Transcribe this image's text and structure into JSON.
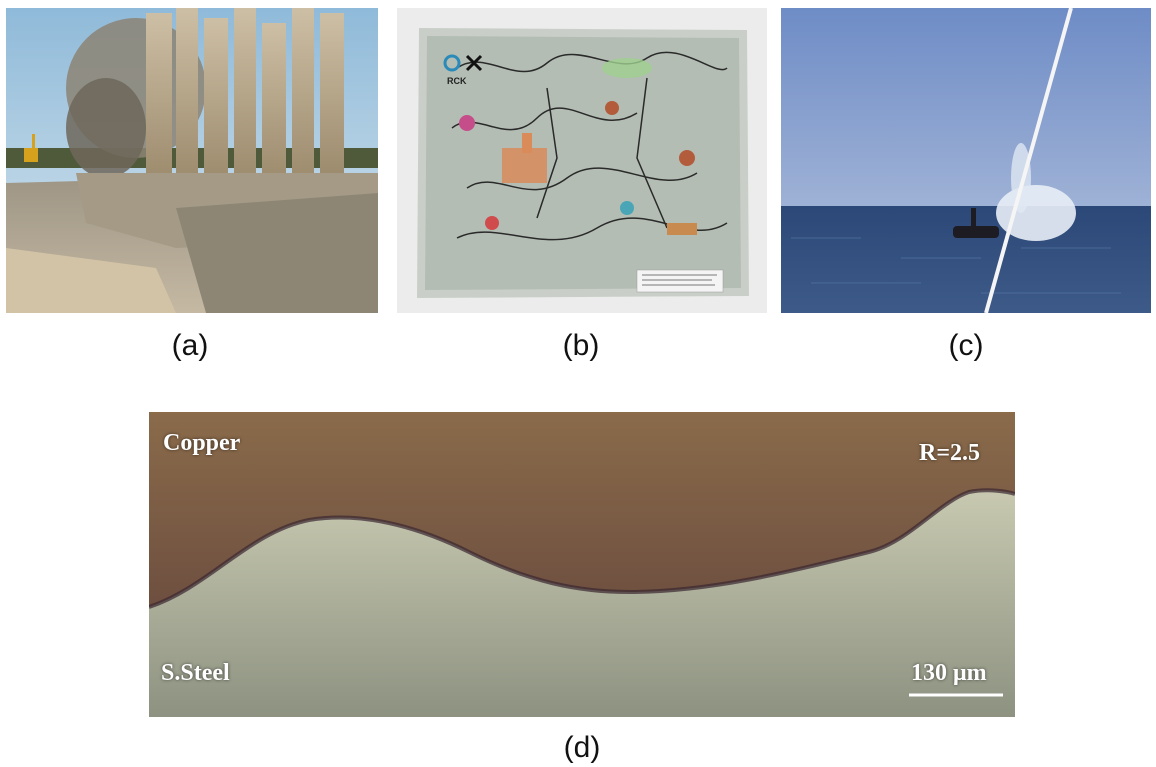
{
  "captions": {
    "a": "(a)",
    "b": "(b)",
    "c": "(c)",
    "d": "(d)"
  },
  "panel_d": {
    "top_label": "Copper",
    "ratio_label": "R=2.5",
    "bottom_label": "S.Steel",
    "scale_label": "130 μm"
  },
  "panel_b": {
    "logo_text": "RCK"
  },
  "colors": {
    "sky_a": "#9cc4e0",
    "sand": "#b9a587",
    "sea": "#2d4a7a",
    "sky_c": "#6f8ec6",
    "copper": "#7a5a3e",
    "steel": "#a9ad92"
  }
}
